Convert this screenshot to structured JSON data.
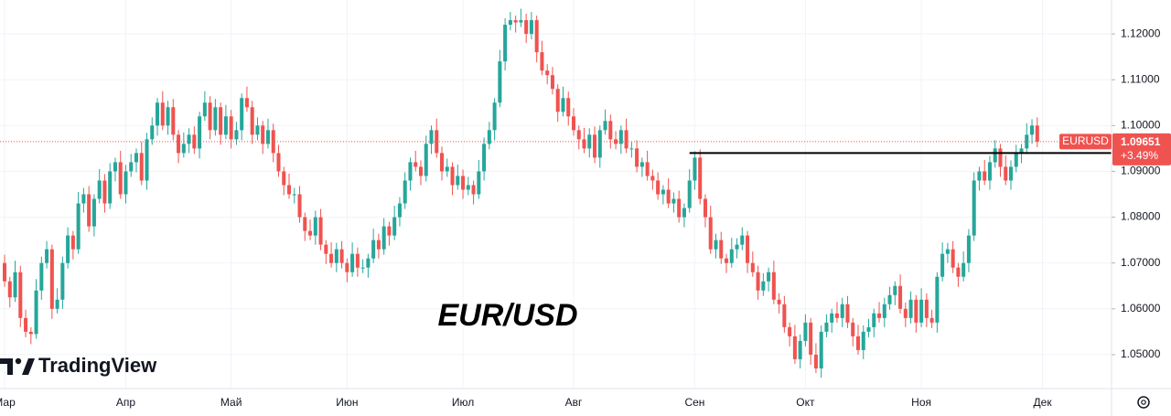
{
  "chart_data": {
    "type": "candlestick",
    "title": "EUR/USD",
    "symbol": "EURUSD",
    "last_price": 1.09651,
    "change_label": "+3.49%",
    "brand": "TradingView",
    "up_color": "#26a69a",
    "down_color": "#ef5350",
    "grid": true,
    "level": {
      "value": 1.094,
      "start_index": 130
    },
    "ylim": [
      1.0426,
      1.1274
    ],
    "yticks": [
      {
        "value": 1.05,
        "label": "1.05000"
      },
      {
        "value": 1.06,
        "label": "1.06000"
      },
      {
        "value": 1.07,
        "label": "1.07000"
      },
      {
        "value": 1.08,
        "label": "1.08000"
      },
      {
        "value": 1.09,
        "label": "1.09000"
      },
      {
        "value": 1.1,
        "label": "1.10000"
      },
      {
        "value": 1.11,
        "label": "1.11000"
      },
      {
        "value": 1.12,
        "label": "1.12000"
      }
    ],
    "xlim": [
      -0.87,
      210.1
    ],
    "xticks": [
      {
        "value": 0,
        "label": "Мар"
      },
      {
        "value": 23,
        "label": "Апр"
      },
      {
        "value": 43,
        "label": "Май"
      },
      {
        "value": 65,
        "label": "Июн"
      },
      {
        "value": 87,
        "label": "Июл"
      },
      {
        "value": 108,
        "label": "Авг"
      },
      {
        "value": 131,
        "label": "Сен"
      },
      {
        "value": 152,
        "label": "Окт"
      },
      {
        "value": 174,
        "label": "Ноя"
      },
      {
        "value": 197,
        "label": "Дек"
      }
    ],
    "open": [
      1.07,
      1.066,
      1.0625,
      1.068,
      1.058,
      1.055,
      1.0545,
      1.064,
      1.07,
      1.073,
      1.06,
      1.062,
      1.07,
      1.076,
      1.073,
      1.083,
      1.085,
      1.078,
      1.084,
      1.088,
      1.083,
      1.09,
      1.092,
      1.085,
      1.09,
      1.092,
      1.094,
      1.088,
      1.097,
      1.1,
      1.105,
      1.1,
      1.104,
      1.098,
      1.094,
      1.096,
      1.098,
      1.095,
      1.102,
      1.105,
      1.099,
      1.104,
      1.098,
      1.102,
      1.097,
      1.099,
      1.106,
      1.104,
      1.098,
      1.1,
      1.096,
      1.099,
      1.094,
      1.09,
      1.087,
      1.085,
      1.085,
      1.08,
      1.077,
      1.076,
      1.08,
      1.074,
      1.072,
      1.07,
      1.073,
      1.07,
      1.068,
      1.072,
      1.069,
      1.069,
      1.071,
      1.075,
      1.073,
      1.078,
      1.076,
      1.08,
      1.083,
      1.088,
      1.092,
      1.091,
      1.089,
      1.096,
      1.099,
      1.094,
      1.09,
      1.091,
      1.087,
      1.089,
      1.086,
      1.087,
      1.085,
      1.09,
      1.096,
      1.099,
      1.105,
      1.114,
      1.122,
      1.123,
      1.1225,
      1.123,
      1.12,
      1.123,
      1.116,
      1.112,
      1.111,
      1.108,
      1.103,
      1.106,
      1.102,
      1.099,
      1.097,
      1.095,
      1.098,
      1.093,
      1.099,
      1.101,
      1.097,
      1.096,
      1.099,
      1.095,
      1.095,
      1.091,
      1.092,
      1.089,
      1.088,
      1.085,
      1.086,
      1.083,
      1.084,
      1.08,
      1.082,
      1.088,
      1.093,
      1.084,
      1.08,
      1.073,
      1.075,
      1.071,
      1.07,
      1.073,
      1.074,
      1.076,
      1.07,
      1.068,
      1.064,
      1.066,
      1.068,
      1.062,
      1.061,
      1.056,
      1.054,
      1.049,
      1.053,
      1.057,
      1.05,
      1.047,
      1.055,
      1.057,
      1.059,
      1.058,
      1.061,
      1.057,
      1.054,
      1.051,
      1.055,
      1.056,
      1.059,
      1.058,
      1.061,
      1.063,
      1.065,
      1.06,
      1.058,
      1.062,
      1.057,
      1.062,
      1.058,
      1.057,
      1.067,
      1.072,
      1.073,
      1.069,
      1.067,
      1.07,
      1.076,
      1.088,
      1.09,
      1.088,
      1.092,
      1.095,
      1.091,
      1.088,
      1.091,
      1.094,
      1.095,
      1.098,
      1.1
    ],
    "high": [
      1.0718,
      1.067,
      1.0705,
      1.0694,
      1.0598,
      1.056,
      1.0665,
      1.0714,
      1.0748,
      1.074,
      1.0645,
      1.0714,
      1.0778,
      1.077,
      1.0855,
      1.0864,
      1.0868,
      1.085,
      1.0905,
      1.0894,
      1.0918,
      1.093,
      1.0945,
      1.0914,
      1.0938,
      1.095,
      1.0965,
      1.0984,
      1.1018,
      1.106,
      1.1075,
      1.1054,
      1.1058,
      1.099,
      1.0985,
      1.0994,
      1.0998,
      1.103,
      1.1075,
      1.1064,
      1.1058,
      1.105,
      1.1045,
      1.1034,
      1.1008,
      1.107,
      1.1085,
      1.1054,
      1.1018,
      1.101,
      1.1015,
      1.1004,
      1.0958,
      1.091,
      1.0895,
      1.0864,
      1.0868,
      1.081,
      1.0795,
      1.0814,
      1.0818,
      1.075,
      1.0745,
      1.0744,
      1.0748,
      1.071,
      1.0745,
      1.0734,
      1.0708,
      1.072,
      1.0775,
      1.0764,
      1.0798,
      1.079,
      1.0825,
      1.0844,
      1.0898,
      1.093,
      1.0945,
      1.0924,
      1.0978,
      1.1,
      1.1015,
      1.0954,
      1.0928,
      1.092,
      1.0915,
      1.0904,
      1.0888,
      1.088,
      1.0925,
      1.0974,
      1.1008,
      1.106,
      1.1165,
      1.1234,
      1.1248,
      1.124,
      1.1255,
      1.1244,
      1.1248,
      1.124,
      1.1185,
      1.1134,
      1.1128,
      1.109,
      1.1085,
      1.1074,
      1.1038,
      1.1,
      1.0995,
      1.0994,
      1.0998,
      1.1,
      1.1035,
      1.1024,
      1.0988,
      1.1,
      1.1015,
      1.0964,
      1.0968,
      1.093,
      1.0945,
      1.0904,
      1.0898,
      1.087,
      1.0885,
      1.0854,
      1.0858,
      1.083,
      1.0905,
      1.0944,
      1.0948,
      1.085,
      1.0825,
      1.0764,
      1.0768,
      1.072,
      1.0755,
      1.0754,
      1.0778,
      1.077,
      1.0725,
      1.0694,
      1.0678,
      1.069,
      1.0705,
      1.0634,
      1.0628,
      1.057,
      1.0565,
      1.0544,
      1.0588,
      1.058,
      1.0525,
      1.0564,
      1.0588,
      1.06,
      1.0615,
      1.0624,
      1.0628,
      1.058,
      1.0565,
      1.0564,
      1.0578,
      1.06,
      1.0615,
      1.0624,
      1.0648,
      1.066,
      1.0675,
      1.0614,
      1.0638,
      1.063,
      1.0645,
      1.0634,
      1.0598,
      1.068,
      1.0745,
      1.0744,
      1.0748,
      1.07,
      1.0725,
      1.0774,
      1.0898,
      1.091,
      1.0925,
      1.0934,
      1.0968,
      1.096,
      1.0935,
      1.0924,
      1.0958,
      1.096,
      1.1005,
      1.1014,
      1.1018
    ],
    "low": [
      1.0648,
      1.0603,
      1.0615,
      1.056,
      1.0538,
      1.0523,
      1.0535,
      1.062,
      1.0688,
      1.0578,
      1.059,
      1.06,
      1.0688,
      1.0708,
      1.072,
      1.081,
      1.0768,
      1.0758,
      1.083,
      1.081,
      1.0818,
      1.0878,
      1.084,
      1.083,
      1.0888,
      1.0898,
      1.087,
      1.086,
      1.0958,
      1.0978,
      1.099,
      1.098,
      1.0968,
      1.0918,
      1.093,
      1.094,
      1.0938,
      1.0928,
      1.101,
      1.097,
      1.0978,
      1.0958,
      1.097,
      1.095,
      1.0958,
      1.0968,
      1.103,
      1.096,
      1.0968,
      1.0938,
      1.095,
      1.092,
      1.0888,
      1.0848,
      1.084,
      1.083,
      1.0788,
      1.0748,
      1.075,
      1.074,
      1.0728,
      1.0698,
      1.069,
      1.068,
      1.0688,
      1.0658,
      1.067,
      1.067,
      1.0678,
      1.0668,
      1.07,
      1.071,
      1.0718,
      1.0738,
      1.075,
      1.078,
      1.0818,
      1.0858,
      1.09,
      1.087,
      1.0878,
      1.0938,
      1.093,
      1.088,
      1.0888,
      1.0848,
      1.086,
      1.084,
      1.0848,
      1.0828,
      1.084,
      1.088,
      1.0948,
      1.0968,
      1.104,
      1.112,
      1.1208,
      1.1203,
      1.1215,
      1.118,
      1.1188,
      1.1138,
      1.111,
      1.109,
      1.1068,
      1.1008,
      1.102,
      1.1,
      1.0978,
      1.0948,
      1.094,
      1.093,
      1.0918,
      1.0908,
      1.098,
      1.095,
      1.0948,
      1.0938,
      1.094,
      1.093,
      1.0898,
      1.0888,
      1.088,
      1.086,
      1.0838,
      1.0828,
      1.082,
      1.081,
      1.0788,
      1.0778,
      1.081,
      1.086,
      1.0828,
      1.0778,
      1.072,
      1.071,
      1.0698,
      1.0678,
      1.069,
      1.071,
      1.0728,
      1.0678,
      1.067,
      1.062,
      1.0628,
      1.0638,
      1.061,
      1.059,
      1.0548,
      1.0518,
      1.048,
      1.047,
      1.0518,
      1.0478,
      1.046,
      1.045,
      1.0538,
      1.0548,
      1.057,
      1.056,
      1.0558,
      1.0518,
      1.05,
      1.049,
      1.0538,
      1.0538,
      1.057,
      1.056,
      1.0598,
      1.0608,
      1.059,
      1.056,
      1.0568,
      1.0548,
      1.056,
      1.056,
      1.0558,
      1.0548,
      1.066,
      1.07,
      1.0678,
      1.0648,
      1.066,
      1.068,
      1.0748,
      1.0858,
      1.087,
      1.086,
      1.0908,
      1.0888,
      1.087,
      1.086,
      1.0898,
      1.0918,
      1.094,
      1.096,
      1.0953
    ],
    "close": [
      1.066,
      1.0625,
      1.068,
      1.058,
      1.055,
      1.0545,
      1.064,
      1.07,
      1.073,
      1.06,
      1.062,
      1.07,
      1.076,
      1.073,
      1.083,
      1.085,
      1.078,
      1.084,
      1.088,
      1.083,
      1.09,
      1.092,
      1.085,
      1.09,
      1.092,
      1.094,
      1.088,
      1.097,
      1.1,
      1.105,
      1.1,
      1.104,
      1.098,
      1.094,
      1.096,
      1.098,
      1.095,
      1.102,
      1.105,
      1.099,
      1.104,
      1.098,
      1.102,
      1.097,
      1.099,
      1.106,
      1.104,
      1.098,
      1.1,
      1.096,
      1.099,
      1.094,
      1.09,
      1.087,
      1.085,
      1.085,
      1.08,
      1.077,
      1.076,
      1.08,
      1.074,
      1.072,
      1.07,
      1.073,
      1.07,
      1.068,
      1.072,
      1.069,
      1.069,
      1.071,
      1.075,
      1.073,
      1.078,
      1.076,
      1.08,
      1.083,
      1.088,
      1.092,
      1.091,
      1.089,
      1.096,
      1.099,
      1.094,
      1.09,
      1.091,
      1.087,
      1.089,
      1.086,
      1.087,
      1.085,
      1.09,
      1.096,
      1.099,
      1.105,
      1.114,
      1.122,
      1.123,
      1.1225,
      1.123,
      1.12,
      1.123,
      1.116,
      1.112,
      1.111,
      1.108,
      1.103,
      1.106,
      1.102,
      1.099,
      1.097,
      1.095,
      1.098,
      1.093,
      1.099,
      1.101,
      1.097,
      1.096,
      1.099,
      1.095,
      1.095,
      1.091,
      1.092,
      1.089,
      1.088,
      1.085,
      1.086,
      1.083,
      1.084,
      1.08,
      1.082,
      1.088,
      1.093,
      1.084,
      1.08,
      1.073,
      1.075,
      1.071,
      1.07,
      1.073,
      1.074,
      1.076,
      1.07,
      1.068,
      1.064,
      1.066,
      1.068,
      1.062,
      1.061,
      1.056,
      1.054,
      1.049,
      1.053,
      1.057,
      1.05,
      1.047,
      1.055,
      1.057,
      1.059,
      1.058,
      1.061,
      1.057,
      1.054,
      1.051,
      1.055,
      1.056,
      1.059,
      1.058,
      1.061,
      1.063,
      1.065,
      1.06,
      1.058,
      1.062,
      1.057,
      1.062,
      1.058,
      1.057,
      1.067,
      1.072,
      1.073,
      1.069,
      1.067,
      1.07,
      1.076,
      1.088,
      1.09,
      1.088,
      1.092,
      1.095,
      1.091,
      1.088,
      1.091,
      1.094,
      1.095,
      1.098,
      1.1,
      1.0965
    ]
  }
}
